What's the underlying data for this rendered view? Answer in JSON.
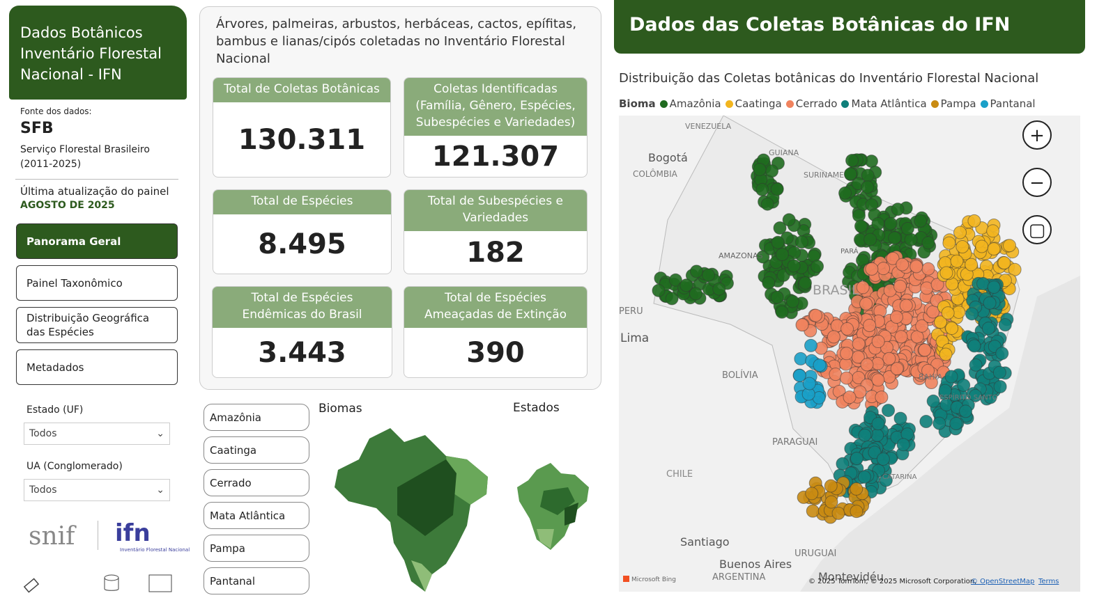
{
  "sidebar": {
    "title": "Dados Botânicos Inventário Florestal Nacional - IFN",
    "source_label": "Fonte dos dados:",
    "source": "SFB",
    "source_name": "Serviço Florestal Brasileiro (2011-2025)",
    "update_label": "Última atualização do painel",
    "update_date": "AGOSTO DE 2025",
    "nav": [
      "Panorama Geral",
      "Painel Taxonômico",
      "Distribuição Geográfica das Espécies",
      "Metadados"
    ],
    "filters": [
      {
        "label": "Estado (UF)",
        "value": "Todos"
      },
      {
        "label": "UA (Conglomerado)",
        "value": "Todos"
      }
    ],
    "logos": {
      "snif": "snif",
      "ifn": "ifn",
      "ifn_caption": "Inventário Florestal Nacional"
    }
  },
  "summary": {
    "description": "Árvores, palmeiras, arbustos, herbáceas, cactos, epífitas, bambus e lianas/cipós coletadas no Inventário Florestal Nacional",
    "kpis": [
      {
        "label": "Total de Coletas Botânicas",
        "value": "130.311"
      },
      {
        "label": "Coletas Identificadas (Família, Gênero, Espécies, Subespécies e Variedades)",
        "value": "121.307"
      },
      {
        "label": "Total de Espécies",
        "value": "8.495"
      },
      {
        "label": "Total de Subespécies e Variedades",
        "value": "182"
      },
      {
        "label": "Total de Espécies Endêmicas do Brasil",
        "value": "3.443"
      },
      {
        "label": "Total de Espécies Ameaçadas de Extinção",
        "value": "390"
      }
    ]
  },
  "biome_filter": {
    "buttons": [
      "Amazônia",
      "Caatinga",
      "Cerrado",
      "Mata Atlântica",
      "Pampa",
      "Pantanal"
    ],
    "biomes_title": "Biomas",
    "states_title": "Estados"
  },
  "map_panel": {
    "title": "Dados das Coletas Botânicas do IFN",
    "subtitle": "Distribuição das Coletas botânicas do Inventário Florestal Nacional",
    "legend_title": "Bioma",
    "legend": [
      {
        "name": "Amazônia",
        "color": "#1f6b1f"
      },
      {
        "name": "Caatinga",
        "color": "#f2b51f"
      },
      {
        "name": "Cerrado",
        "color": "#f0835e"
      },
      {
        "name": "Mata Atlântica",
        "color": "#0f7f7a"
      },
      {
        "name": "Pampa",
        "color": "#c98b12"
      },
      {
        "name": "Pantanal",
        "color": "#1aa0c8"
      }
    ],
    "place_labels": [
      "VENEZUELA",
      "Bogotá",
      "COLÔMBIA",
      "GUIANA",
      "SURINAME",
      "AMAZONAS",
      "PARÁ",
      "BRASIL",
      "PERU",
      "Lima",
      "BOLÍVIA",
      "PARAGUAI",
      "CHILE",
      "Santiago",
      "URUGUAI",
      "Buenos Aires",
      "ARGENTINA",
      "Montevidéu",
      "BAHIA",
      "ESPÍRITO SANTO",
      "CATARINA"
    ],
    "bing": "Microsoft Bing",
    "attribution": "© 2025 TomTom, © 2025 Microsoft Corporation,",
    "osm": "© OpenStreetMap",
    "terms": "Terms"
  }
}
